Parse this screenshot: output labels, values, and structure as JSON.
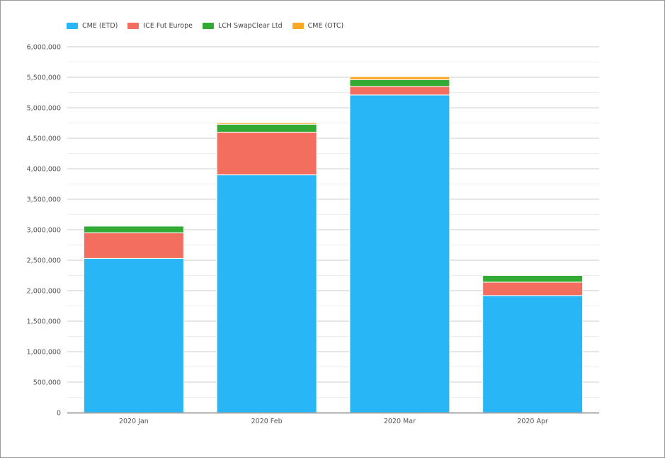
{
  "chart_data": {
    "type": "bar",
    "stacked": true,
    "categories": [
      "2020 Jan",
      "2020 Feb",
      "2020 Mar",
      "2020 Apr"
    ],
    "series": [
      {
        "name": "CME (ETD)",
        "color": "#29b6f6",
        "values": [
          2530000,
          3900000,
          5210000,
          1920000
        ]
      },
      {
        "name": "ICE Fut Europe",
        "color": "#f46e60",
        "values": [
          420000,
          700000,
          140000,
          220000
        ]
      },
      {
        "name": "LCH SwapClear Ltd",
        "color": "#33aa33",
        "values": [
          110000,
          130000,
          110000,
          110000
        ]
      },
      {
        "name": "CME (OTC)",
        "color": "#f9a825",
        "values": [
          5000,
          25000,
          50000,
          5000
        ]
      }
    ],
    "y_ticks": [
      "0",
      "500,000",
      "1,000,000",
      "1,500,000",
      "2,000,000",
      "2,500,000",
      "3,000,000",
      "3,500,000",
      "4,000,000",
      "4,500,000",
      "5,000,000",
      "5,500,000",
      "6,000,000"
    ],
    "ylim": [
      0,
      6000000
    ],
    "y_step": 500000,
    "title": "",
    "xlabel": "",
    "ylabel": "",
    "legend_position": "top-left",
    "grid": true
  }
}
